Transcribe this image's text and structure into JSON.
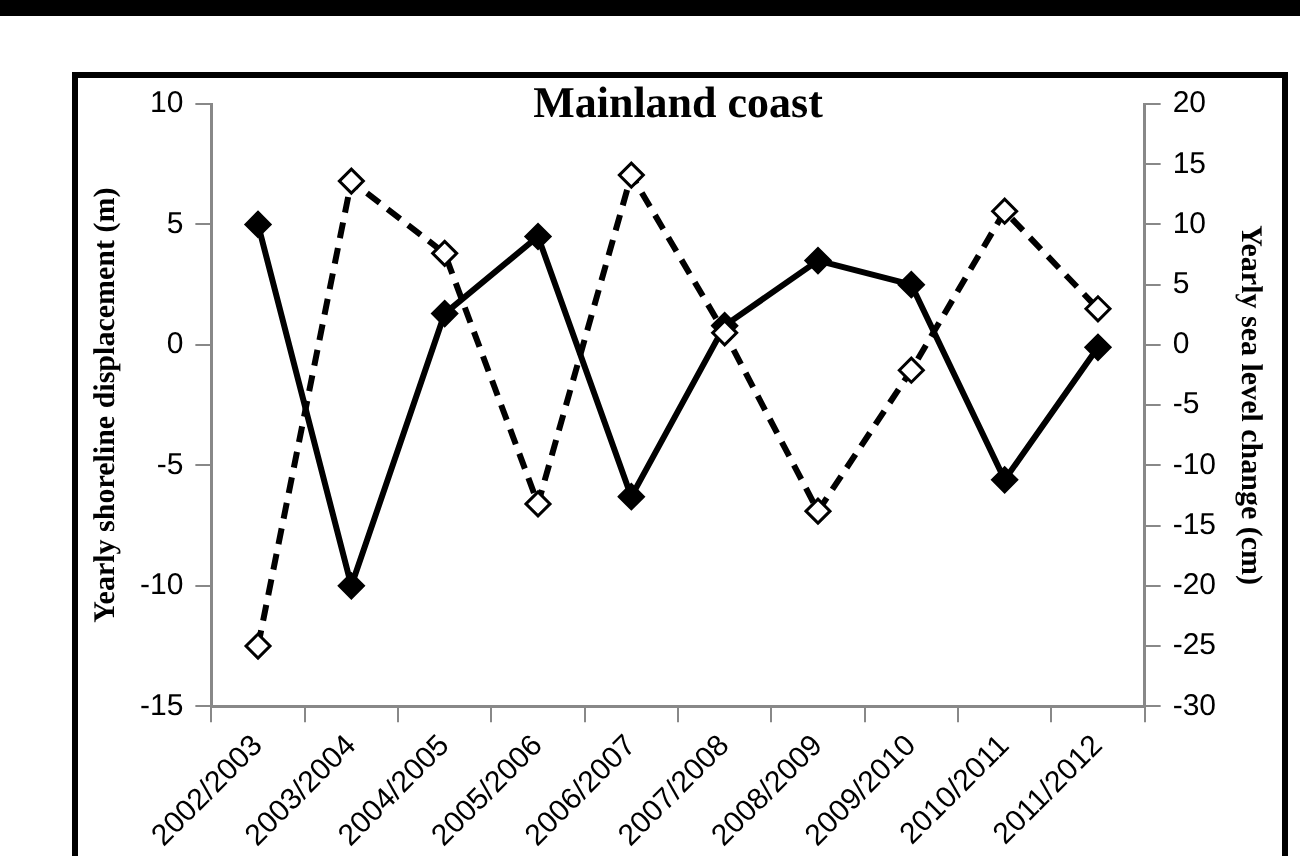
{
  "chart_data": {
    "type": "line",
    "title": "Mainland coast",
    "ylabel": "Yearly shoreline displacement (m)",
    "y2label": "Yearly sea level change (cm)",
    "categories": [
      "2002/2003",
      "2003/2004",
      "2004/2005",
      "2005/2006",
      "2006/2007",
      "2007/2008",
      "2008/2009",
      "2009/2010",
      "2010/2011",
      "2011/2012"
    ],
    "series": [
      {
        "color": "#000000",
        "marker": "diamond",
        "line_style": "solid",
        "values": [
          5,
          -10,
          1.3,
          4.5,
          -6.3,
          0.8,
          3.5,
          2.5,
          -5.6,
          -0.1
        ]
      },
      {
        "color": "#000000",
        "marker": "diamond",
        "line_style": "dashed",
        "axis": "y2",
        "values": [
          -25,
          13.6,
          7.6,
          -13.2,
          14.1,
          1,
          -13.8,
          -2.1,
          11.1,
          3
        ]
      }
    ],
    "ylim": [
      -15,
      10
    ],
    "yticks": [
      -15,
      -10,
      -5,
      0,
      5,
      10
    ],
    "y2lim": [
      -30,
      20
    ],
    "y2ticks": [
      -30,
      -25,
      -20,
      -15,
      -10,
      -5,
      0,
      5,
      10,
      15,
      20
    ],
    "grid": false,
    "legend": false
  }
}
